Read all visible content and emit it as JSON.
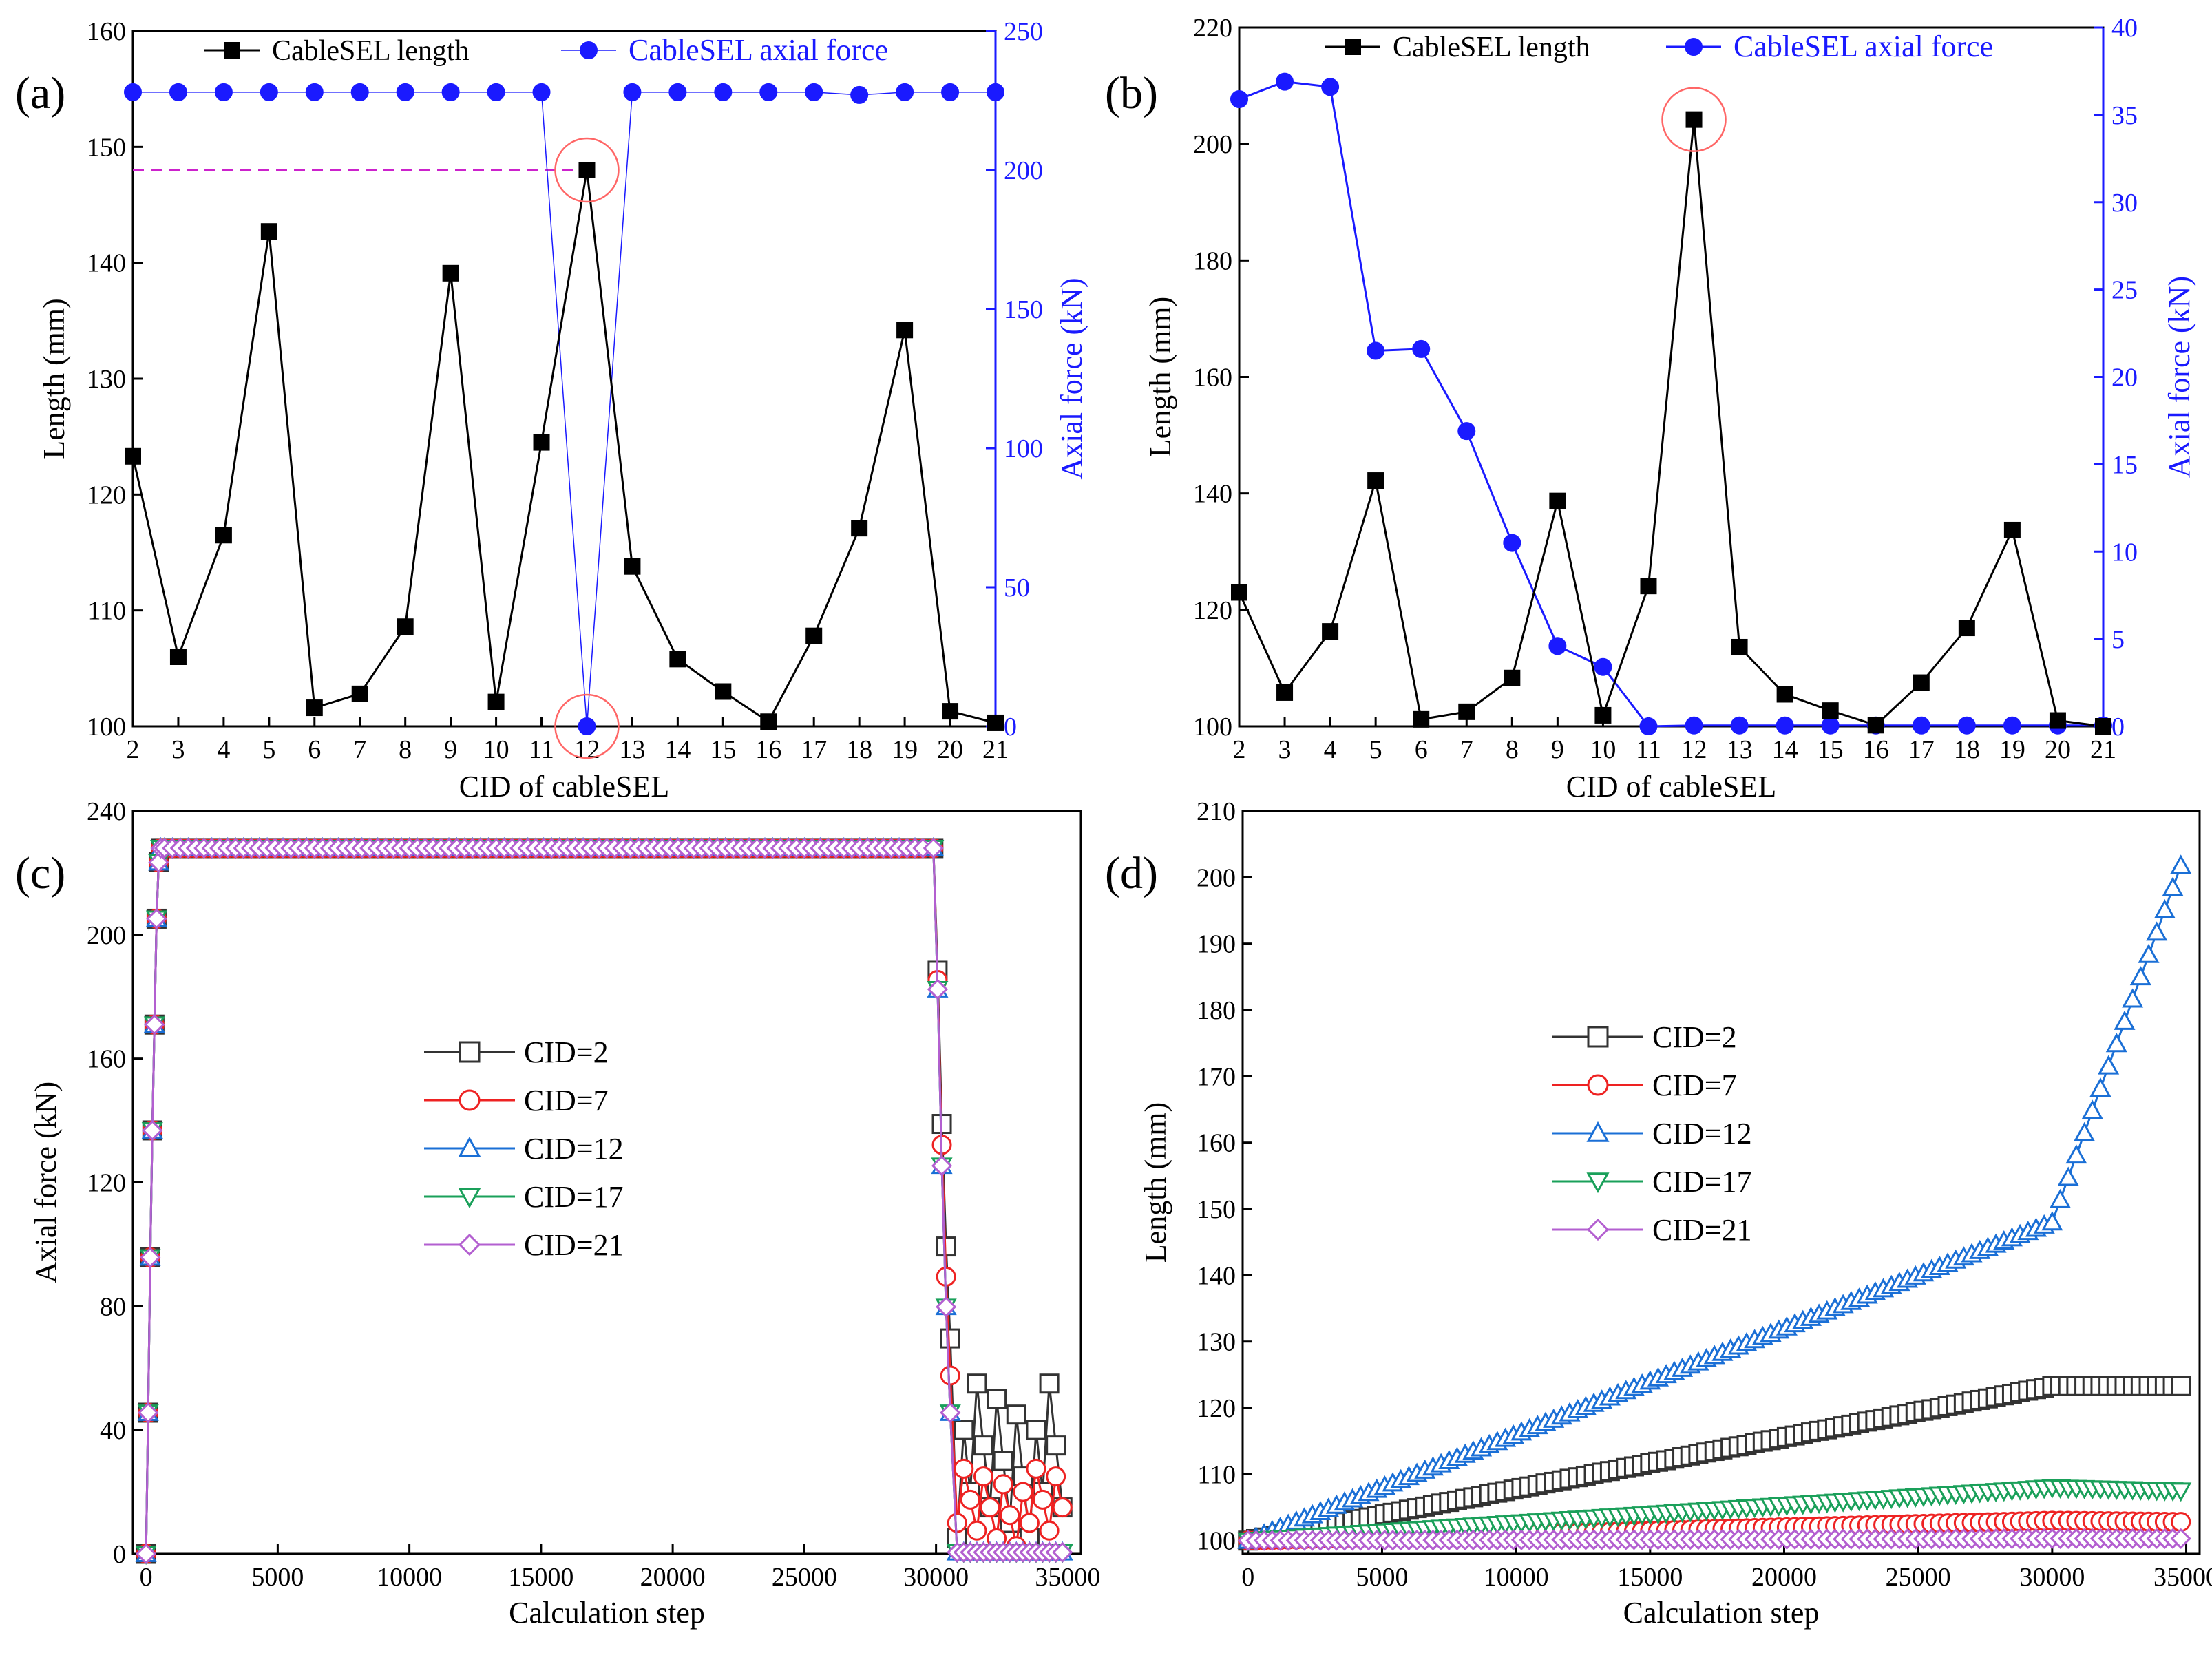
{
  "chart_data": [
    {
      "panel": "(a)",
      "type": "line",
      "xlabel": "CID of cableSEL",
      "ylabel": "Length (mm)",
      "y2label": "Axial force (kN)",
      "x": [
        2,
        3,
        4,
        5,
        6,
        7,
        8,
        9,
        10,
        11,
        12,
        13,
        14,
        15,
        16,
        17,
        18,
        19,
        20,
        21
      ],
      "xlim": [
        2,
        21
      ],
      "ylim": [
        100,
        160
      ],
      "y2lim": [
        0,
        250
      ],
      "yticks": [
        100,
        110,
        120,
        130,
        140,
        150,
        160
      ],
      "y2ticks": [
        0,
        50,
        100,
        150,
        200,
        250
      ],
      "legend_position": "top",
      "series": [
        {
          "name": "CableSEL length",
          "axis": "left",
          "color": "#000000",
          "marker": "square-filled",
          "values": [
            123.3,
            106.0,
            116.5,
            142.7,
            101.6,
            102.8,
            108.6,
            139.1,
            102.1,
            124.5,
            148.0,
            113.8,
            105.8,
            103.0,
            100.4,
            107.8,
            117.1,
            134.2,
            101.3,
            100.3
          ]
        },
        {
          "name": "CableSEL axial force",
          "axis": "right",
          "color": "#1a1aff",
          "marker": "circle-filled",
          "values": [
            228,
            228,
            228,
            228,
            228,
            228,
            228,
            228,
            228,
            228,
            0,
            228,
            228,
            228,
            228,
            228,
            227,
            228,
            228,
            228
          ]
        }
      ],
      "annotations": [
        "dashed line at length 148.0 from CID 2 to CID 12",
        "red circles at CID 12"
      ]
    },
    {
      "panel": "(b)",
      "type": "line",
      "xlabel": "CID of cableSEL",
      "ylabel": "Length (mm)",
      "y2label": "Axial force (kN)",
      "x": [
        2,
        3,
        4,
        5,
        6,
        7,
        8,
        9,
        10,
        11,
        12,
        13,
        14,
        15,
        16,
        17,
        18,
        19,
        20,
        21
      ],
      "xlim": [
        2,
        21
      ],
      "ylim": [
        100,
        220
      ],
      "y2lim": [
        0,
        40
      ],
      "yticks": [
        100,
        120,
        140,
        160,
        180,
        200,
        220
      ],
      "y2ticks": [
        0,
        5,
        10,
        15,
        20,
        25,
        30,
        35,
        40
      ],
      "legend_position": "top",
      "series": [
        {
          "name": "CableSEL length",
          "axis": "left",
          "color": "#000000",
          "marker": "square-filled",
          "values": [
            123.0,
            105.8,
            116.3,
            142.2,
            101.2,
            102.5,
            108.3,
            138.7,
            101.9,
            124.1,
            204.2,
            113.6,
            105.5,
            102.7,
            100.2,
            107.5,
            116.9,
            133.7,
            101.0,
            100.0
          ]
        },
        {
          "name": "CableSEL axial force",
          "axis": "right",
          "color": "#1a1aff",
          "marker": "circle-filled",
          "values": [
            35.9,
            36.9,
            36.6,
            21.5,
            21.6,
            16.9,
            10.5,
            4.6,
            3.4,
            0.0,
            0.05,
            0.05,
            0.05,
            0.05,
            0.05,
            0.05,
            0.05,
            0.05,
            0.05,
            0.05
          ]
        }
      ],
      "annotations": [
        "red circle at CID 12 length peak"
      ]
    },
    {
      "panel": "(c)",
      "type": "line",
      "xlabel": "Calculation step",
      "ylabel": "Axial force (kN)",
      "xlim": [
        -500,
        35500
      ],
      "ylim": [
        0,
        240
      ],
      "xticks": [
        0,
        5000,
        10000,
        15000,
        20000,
        25000,
        30000,
        35000
      ],
      "yticks": [
        0,
        40,
        80,
        120,
        160,
        200,
        240
      ],
      "legend_position": "center-left",
      "series": [
        {
          "name": "CID=2",
          "color": "#333333",
          "marker": "square-open",
          "profile": "rise-plateau-decay",
          "plateau": 228,
          "tail_level": 30
        },
        {
          "name": "CID=7",
          "color": "#ee2222",
          "marker": "circle-open",
          "profile": "rise-plateau-decay",
          "plateau": 228,
          "tail_level": 15
        },
        {
          "name": "CID=12",
          "color": "#1a6fd6",
          "marker": "triangle-up-open",
          "profile": "rise-plateau-decay",
          "plateau": 228,
          "tail_level": 0
        },
        {
          "name": "CID=17",
          "color": "#1aa05a",
          "marker": "triangle-down-open",
          "profile": "rise-plateau-decay",
          "plateau": 228,
          "tail_level": 0
        },
        {
          "name": "CID=21",
          "color": "#b35fd0",
          "marker": "diamond-open",
          "profile": "rise-plateau-decay",
          "plateau": 228,
          "tail_level": 0
        }
      ]
    },
    {
      "panel": "(d)",
      "type": "line",
      "xlabel": "Calculation step",
      "ylabel": "Length (mm)",
      "xlim": [
        -200,
        35500
      ],
      "ylim": [
        98,
        210
      ],
      "xticks": [
        0,
        5000,
        10000,
        15000,
        20000,
        25000,
        30000,
        35000
      ],
      "yticks": [
        100,
        110,
        120,
        130,
        140,
        150,
        160,
        170,
        180,
        190,
        200,
        210
      ],
      "legend_position": "center-left",
      "series": [
        {
          "name": "CID=2",
          "color": "#333333",
          "marker": "square-open",
          "x": [
            0,
            30000,
            35000
          ],
          "values": [
            100,
            123.3,
            123.3
          ]
        },
        {
          "name": "CID=7",
          "color": "#ee2222",
          "marker": "circle-open",
          "x": [
            0,
            30000,
            35000
          ],
          "values": [
            100,
            103.0,
            102.8
          ]
        },
        {
          "name": "CID=12",
          "color": "#1a6fd6",
          "marker": "triangle-up-open",
          "x": [
            0,
            30000,
            35000
          ],
          "values": [
            100,
            148.0,
            204.0
          ]
        },
        {
          "name": "CID=17",
          "color": "#1aa05a",
          "marker": "triangle-down-open",
          "x": [
            0,
            30000,
            35000
          ],
          "values": [
            100,
            108.0,
            107.5
          ]
        },
        {
          "name": "CID=21",
          "color": "#b35fd0",
          "marker": "diamond-open",
          "x": [
            0,
            30000,
            35000
          ],
          "values": [
            100,
            100.3,
            100.3
          ]
        }
      ]
    }
  ]
}
